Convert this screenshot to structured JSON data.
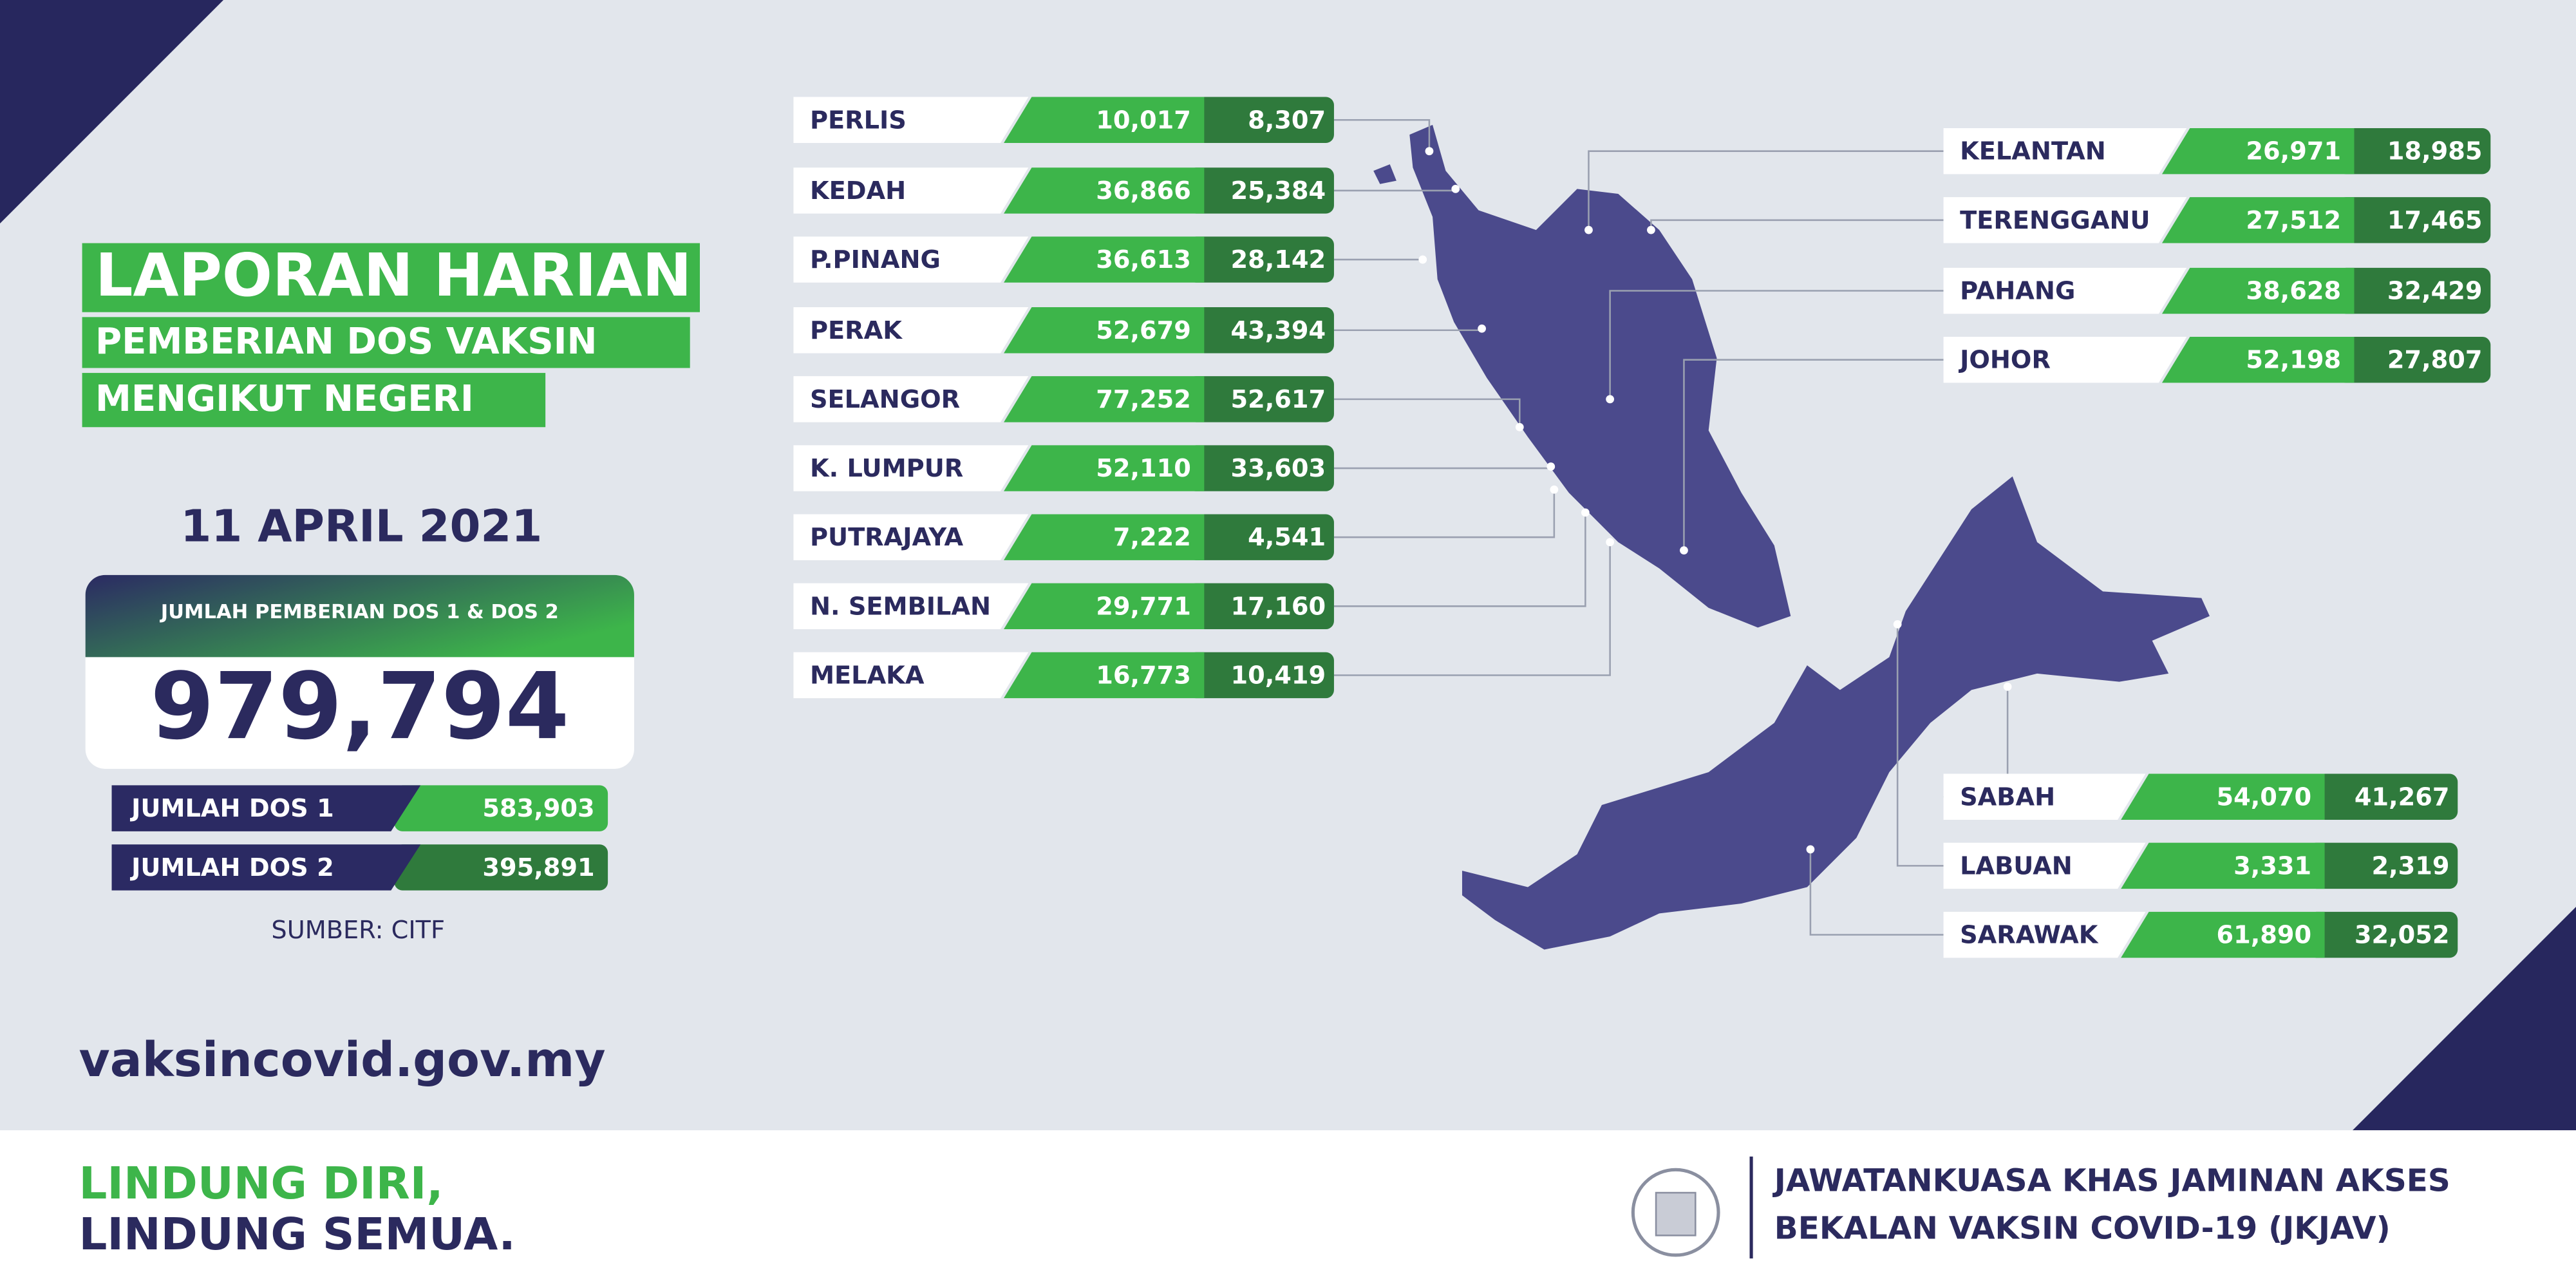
{
  "header": {
    "title_lines": [
      "LAPORAN HARIAN",
      "PEMBERIAN DOS VAKSIN",
      "MENGIKUT NEGERI"
    ],
    "date": "11 APRIL 2021"
  },
  "summary": {
    "total_label": "JUMLAH PEMBERIAN DOS 1 & DOS 2",
    "total": "979,794",
    "dose1": {
      "label": "JUMLAH DOS 1",
      "value": "583,903"
    },
    "dose2": {
      "label": "JUMLAH DOS 2",
      "value": "395,891"
    },
    "source": "SUMBER: CITF"
  },
  "states": [
    {
      "name": "PERLIS",
      "dose1": "10,017",
      "dose2": "8,307"
    },
    {
      "name": "KEDAH",
      "dose1": "36,866",
      "dose2": "25,384"
    },
    {
      "name": "P.PINANG",
      "dose1": "36,613",
      "dose2": "28,142"
    },
    {
      "name": "PERAK",
      "dose1": "52,679",
      "dose2": "43,394"
    },
    {
      "name": "SELANGOR",
      "dose1": "77,252",
      "dose2": "52,617"
    },
    {
      "name": "K. LUMPUR",
      "dose1": "52,110",
      "dose2": "33,603"
    },
    {
      "name": "PUTRAJAYA",
      "dose1": "7,222",
      "dose2": "4,541"
    },
    {
      "name": "N. SEMBILAN",
      "dose1": "29,771",
      "dose2": "17,160"
    },
    {
      "name": "MELAKA",
      "dose1": "16,773",
      "dose2": "10,419"
    },
    {
      "name": "KELANTAN",
      "dose1": "26,971",
      "dose2": "18,985"
    },
    {
      "name": "TERENGGANU",
      "dose1": "27,512",
      "dose2": "17,465"
    },
    {
      "name": "PAHANG",
      "dose1": "38,628",
      "dose2": "32,429"
    },
    {
      "name": "JOHOR",
      "dose1": "52,198",
      "dose2": "27,807"
    },
    {
      "name": "SABAH",
      "dose1": "54,070",
      "dose2": "41,267"
    },
    {
      "name": "LABUAN",
      "dose1": "3,331",
      "dose2": "2,319"
    },
    {
      "name": "SARAWAK",
      "dose1": "61,890",
      "dose2": "32,052"
    }
  ],
  "website": "vaksincovid.gov.my",
  "slogan": [
    "LINDUNG DIRI,",
    "LINDUNG SEMUA."
  ],
  "agency": [
    "JAWATANKUASA KHAS JAMINAN AKSES",
    "BEKALAN VAKSIN COVID-19 (JKJAV)"
  ]
}
